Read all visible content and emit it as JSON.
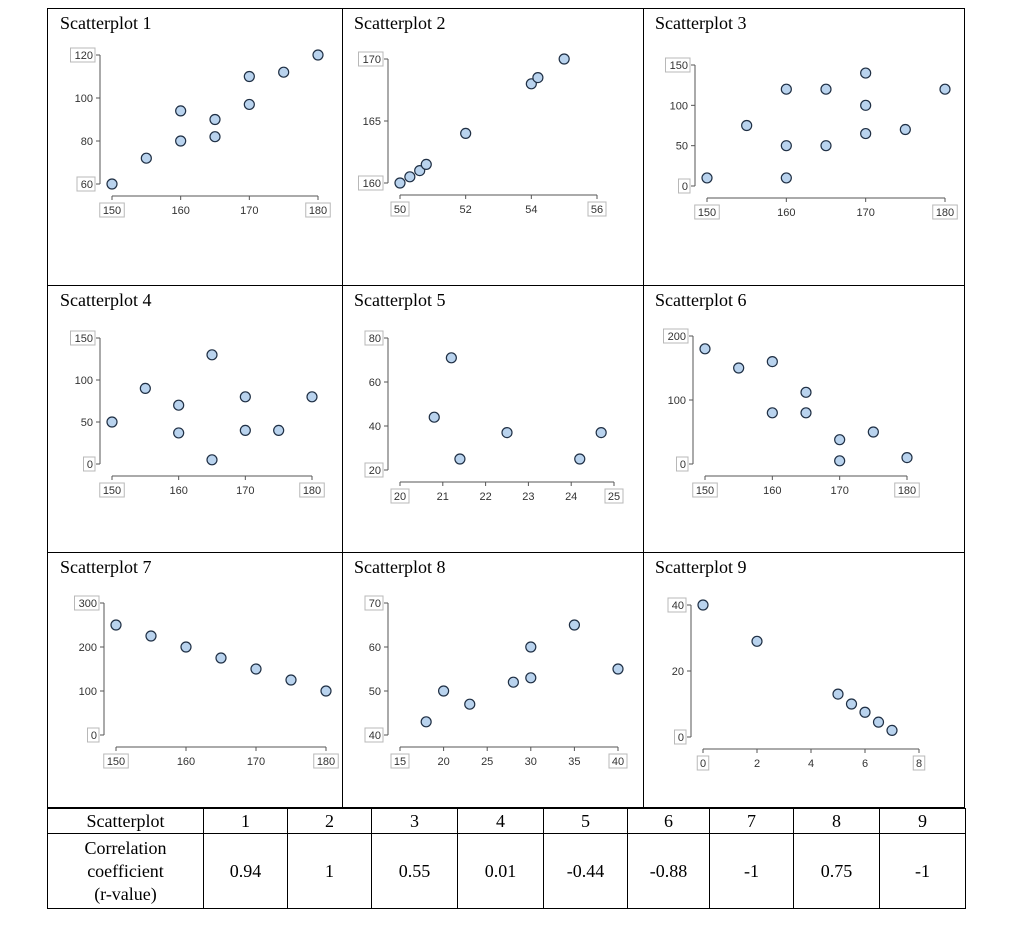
{
  "plots": [
    {
      "title": "Scatterplot 1",
      "chart_data": {
        "type": "scatter",
        "xlim": [
          150,
          180
        ],
        "ylim": [
          60,
          120
        ],
        "xticks": [
          "150",
          "160",
          "170",
          "180"
        ],
        "yticks": [
          "60",
          "80",
          "100",
          "120"
        ],
        "x": [
          150,
          155,
          160,
          160,
          165,
          165,
          170,
          170,
          175,
          180
        ],
        "y": [
          60,
          72,
          80,
          94,
          82,
          90,
          97,
          110,
          112,
          120
        ]
      }
    },
    {
      "title": "Scatterplot 2",
      "chart_data": {
        "type": "scatter",
        "xlim": [
          50,
          56
        ],
        "ylim": [
          160,
          170
        ],
        "xticks": [
          "50",
          "52",
          "54",
          "56"
        ],
        "yticks": [
          "160",
          "165",
          "170"
        ],
        "x": [
          50,
          50.3,
          50.6,
          50.8,
          52,
          54,
          54.2,
          55
        ],
        "y": [
          160,
          160.5,
          161,
          161.5,
          164,
          168,
          168.5,
          170
        ]
      }
    },
    {
      "title": "Scatterplot 3",
      "chart_data": {
        "type": "scatter",
        "xlim": [
          150,
          180
        ],
        "ylim": [
          0,
          150
        ],
        "xticks": [
          "150",
          "160",
          "170",
          "180"
        ],
        "yticks": [
          "0",
          "50",
          "100",
          "150"
        ],
        "x": [
          150,
          155,
          160,
          160,
          160,
          165,
          165,
          170,
          170,
          170,
          175,
          180
        ],
        "y": [
          10,
          75,
          120,
          50,
          10,
          120,
          50,
          140,
          100,
          65,
          70,
          120
        ]
      }
    },
    {
      "title": "Scatterplot 4",
      "chart_data": {
        "type": "scatter",
        "xlim": [
          150,
          180
        ],
        "ylim": [
          0,
          150
        ],
        "xticks": [
          "150",
          "160",
          "170",
          "180"
        ],
        "yticks": [
          "0",
          "50",
          "100",
          "150"
        ],
        "x": [
          150,
          155,
          160,
          160,
          165,
          165,
          170,
          170,
          175,
          180
        ],
        "y": [
          50,
          90,
          70,
          37,
          130,
          5,
          80,
          40,
          40,
          80
        ]
      }
    },
    {
      "title": "Scatterplot 5",
      "chart_data": {
        "type": "scatter",
        "xlim": [
          20,
          25
        ],
        "ylim": [
          20,
          80
        ],
        "xticks": [
          "20",
          "21",
          "22",
          "23",
          "24",
          "25"
        ],
        "yticks": [
          "20",
          "40",
          "60",
          "80"
        ],
        "x": [
          20.8,
          21.2,
          21.4,
          22.5,
          24.2,
          24.7
        ],
        "y": [
          44,
          71,
          25,
          37,
          25,
          37
        ]
      }
    },
    {
      "title": "Scatterplot 6",
      "chart_data": {
        "type": "scatter",
        "xlim": [
          150,
          180
        ],
        "ylim": [
          0,
          200
        ],
        "xticks": [
          "150",
          "160",
          "170",
          "180"
        ],
        "yticks": [
          "0",
          "100",
          "200"
        ],
        "x": [
          150,
          155,
          160,
          160,
          165,
          165,
          170,
          170,
          175,
          180
        ],
        "y": [
          180,
          150,
          160,
          80,
          112,
          80,
          38,
          5,
          50,
          10
        ]
      }
    },
    {
      "title": "Scatterplot 7",
      "chart_data": {
        "type": "scatter",
        "xlim": [
          150,
          180
        ],
        "ylim": [
          0,
          300
        ],
        "xticks": [
          "150",
          "160",
          "170",
          "180"
        ],
        "yticks": [
          "0",
          "100",
          "200",
          "300"
        ],
        "x": [
          150,
          155,
          160,
          165,
          170,
          175,
          180
        ],
        "y": [
          250,
          225,
          200,
          175,
          150,
          125,
          100
        ]
      }
    },
    {
      "title": "Scatterplot 8",
      "chart_data": {
        "type": "scatter",
        "xlim": [
          15,
          40
        ],
        "ylim": [
          40,
          70
        ],
        "xticks": [
          "15",
          "20",
          "25",
          "30",
          "35",
          "40"
        ],
        "yticks": [
          "40",
          "50",
          "60",
          "70"
        ],
        "x": [
          18,
          20,
          23,
          28,
          30,
          30,
          35,
          40
        ],
        "y": [
          43,
          50,
          47,
          52,
          53,
          60,
          65,
          55
        ]
      }
    },
    {
      "title": "Scatterplot 9",
      "chart_data": {
        "type": "scatter",
        "xlim": [
          0,
          8
        ],
        "ylim": [
          0,
          40
        ],
        "xticks": [
          "0",
          "2",
          "4",
          "6",
          "8"
        ],
        "yticks": [
          "0",
          "20",
          "40"
        ],
        "x": [
          0,
          2,
          5,
          5.5,
          6,
          6.5,
          7
        ],
        "y": [
          40,
          29,
          13,
          10,
          7.5,
          4.5,
          2
        ]
      }
    }
  ],
  "table": {
    "header_label": "Scatterplot",
    "row_label_lines": [
      "Correlation",
      "coefficient",
      "(r-value)"
    ],
    "columns": [
      "1",
      "2",
      "3",
      "4",
      "5",
      "6",
      "7",
      "8",
      "9"
    ],
    "values": [
      "0.94",
      "1",
      "0.55",
      "0.01",
      "-0.44",
      "-0.88",
      "-1",
      "0.75",
      "-1"
    ]
  },
  "colors": {
    "point_fill": "#b9d3ee",
    "point_stroke": "#1f2f44",
    "axis": "#555555"
  }
}
